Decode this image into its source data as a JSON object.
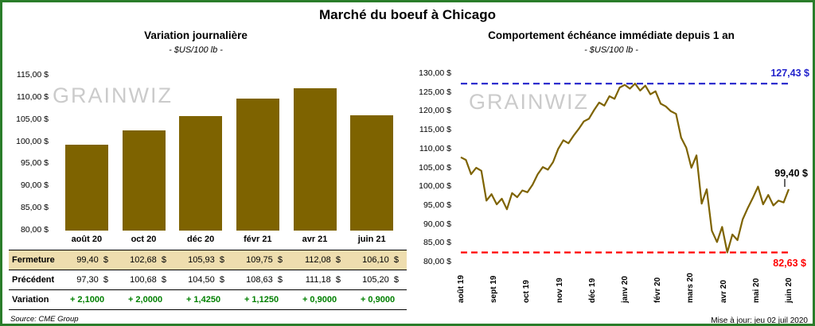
{
  "page": {
    "title": "Marché du boeuf à Chicago",
    "source": "Source: CME Group",
    "updated": "Mise à jour: jeu 02 juil 2020"
  },
  "watermark": "GRAINWIZ",
  "colors": {
    "border_green": "#2a7d2a",
    "gold": "#7e6300",
    "max_blue": "#2222cc",
    "min_red": "#ff0000",
    "variation_green": "#008000",
    "fermeture_bg": "#eeddae"
  },
  "left": {
    "title": "Variation journalière",
    "subtitle": "- $US/100 lb -",
    "table": {
      "rows": [
        {
          "label": "Fermeture",
          "values": [
            "99,40  $",
            "102,68  $",
            "105,93  $",
            "109,75  $",
            "112,08  $",
            "106,10  $"
          ]
        },
        {
          "label": "Précédent",
          "values": [
            "97,30  $",
            "100,68  $",
            "104,50  $",
            "108,63  $",
            "111,18  $",
            "105,20  $"
          ]
        },
        {
          "label": "Variation",
          "values": [
            "+ 2,1000",
            "+ 2,0000",
            "+ 1,4250",
            "+ 1,1250",
            "+ 0,9000",
            "+ 0,9000"
          ]
        }
      ]
    }
  },
  "right": {
    "title": "Comportement échéance immédiate depuis 1 an",
    "subtitle": "- $US/100 lb -",
    "max_label": "127,43 $",
    "last_label": "99,40 $",
    "min_label": "82,63 $"
  },
  "chart_data": [
    {
      "type": "bar",
      "title": "Variation journalière",
      "subtitle": "- $US/100 lb -",
      "categories": [
        "août 20",
        "oct 20",
        "déc 20",
        "févr 21",
        "avr 21",
        "juin 21"
      ],
      "values": [
        99.4,
        102.68,
        105.93,
        109.75,
        112.08,
        106.1
      ],
      "previous_values": [
        97.3,
        100.68,
        104.5,
        108.63,
        111.18,
        105.2
      ],
      "variations": [
        2.1,
        2.0,
        1.425,
        1.125,
        0.9,
        0.9
      ],
      "ylim": [
        80,
        115
      ],
      "ytick_step": 5,
      "ylabel": "$US/100 lb",
      "grid": false
    },
    {
      "type": "line",
      "title": "Comportement échéance immédiate depuis 1 an",
      "subtitle": "- $US/100 lb -",
      "x_labels": [
        "août 19",
        "sept 19",
        "oct 19",
        "nov 19",
        "déc 19",
        "janv 20",
        "févr 20",
        "mars 20",
        "avr 20",
        "mai 20",
        "juin 20"
      ],
      "ylim": [
        80,
        130
      ],
      "ytick_step": 5,
      "ylabel": "$US/100 lb",
      "max_value": 127.43,
      "min_value": 82.63,
      "last_value": 99.4,
      "grid": false,
      "values": [
        107.9,
        107.2,
        103.4,
        105.1,
        104.3,
        96.4,
        98.1,
        95.4,
        96.9,
        94.1,
        98.4,
        97.3,
        99.1,
        98.6,
        100.6,
        103.4,
        105.3,
        104.6,
        106.6,
        110.1,
        112.4,
        111.6,
        113.6,
        115.4,
        117.4,
        118.1,
        120.4,
        122.4,
        121.6,
        124.1,
        123.4,
        126.4,
        127.1,
        126.1,
        127.43,
        125.6,
        126.9,
        124.6,
        125.4,
        122.1,
        121.4,
        120.1,
        119.4,
        113.1,
        110.4,
        105.1,
        108.4,
        95.6,
        99.4,
        88.4,
        85.4,
        89.4,
        82.63,
        87.4,
        85.9,
        91.4,
        94.4,
        97.1,
        100.1,
        95.4,
        97.9,
        95.1,
        96.4,
        95.9,
        99.4
      ]
    }
  ]
}
